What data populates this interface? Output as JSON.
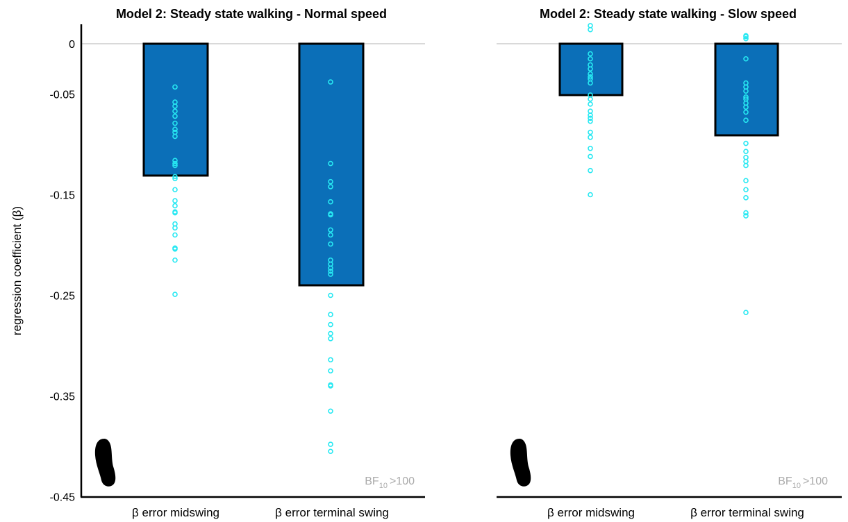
{
  "chart_data": [
    {
      "type": "bar",
      "title": "Model 2: Steady state walking - Normal speed",
      "ylabel": "regression coefficient (β)",
      "ylim": [
        -0.45,
        0.02
      ],
      "yticks": [
        "0",
        "-0.05",
        "-0.15",
        "-0.25",
        "-0.35",
        "-0.45"
      ],
      "categories": [
        "β error midswing",
        "β error terminal swing"
      ],
      "values": [
        -0.131,
        -0.24
      ],
      "bar_color": "#0b6fb8",
      "point_color": "#27e8f2",
      "points": [
        [
          -0.043,
          -0.058,
          -0.062,
          -0.067,
          -0.072,
          -0.079,
          -0.085,
          -0.088,
          -0.092,
          -0.116,
          -0.119,
          -0.121,
          -0.132,
          -0.134,
          -0.145,
          -0.156,
          -0.161,
          -0.167,
          -0.168,
          -0.179,
          -0.183,
          -0.19,
          -0.203,
          -0.204,
          -0.215,
          -0.249
        ],
        [
          -0.038,
          -0.119,
          -0.137,
          -0.142,
          -0.157,
          -0.169,
          -0.17,
          -0.185,
          -0.19,
          -0.199,
          -0.215,
          -0.219,
          -0.223,
          -0.226,
          -0.229,
          -0.25,
          -0.269,
          -0.279,
          -0.288,
          -0.293,
          -0.314,
          -0.325,
          -0.339,
          -0.34,
          -0.365,
          -0.398,
          -0.405
        ]
      ],
      "annotation": {
        "prefix": "BF",
        "sub": "10",
        "suffix": ">100"
      }
    },
    {
      "type": "bar",
      "title": "Model 2: Steady state walking - Slow speed",
      "ylim": [
        -0.45,
        0.02
      ],
      "categories": [
        "β error midswing",
        "β error terminal swing"
      ],
      "values": [
        -0.051,
        -0.091
      ],
      "bar_color": "#0b6fb8",
      "point_color": "#27e8f2",
      "points": [
        [
          0.014,
          0.018,
          -0.01,
          -0.015,
          -0.021,
          -0.025,
          -0.03,
          -0.033,
          -0.035,
          -0.039,
          -0.051,
          -0.055,
          -0.06,
          -0.067,
          -0.071,
          -0.074,
          -0.077,
          -0.088,
          -0.093,
          -0.104,
          -0.112,
          -0.126,
          -0.15
        ],
        [
          0.008,
          0.005,
          0.007,
          -0.015,
          -0.039,
          -0.043,
          -0.047,
          -0.053,
          -0.055,
          -0.059,
          -0.063,
          -0.068,
          -0.076,
          -0.099,
          -0.107,
          -0.113,
          -0.117,
          -0.121,
          -0.136,
          -0.145,
          -0.153,
          -0.168,
          -0.171,
          -0.267
        ]
      ],
      "annotation": {
        "prefix": "BF",
        "sub": "10",
        "suffix": ">100"
      }
    }
  ]
}
